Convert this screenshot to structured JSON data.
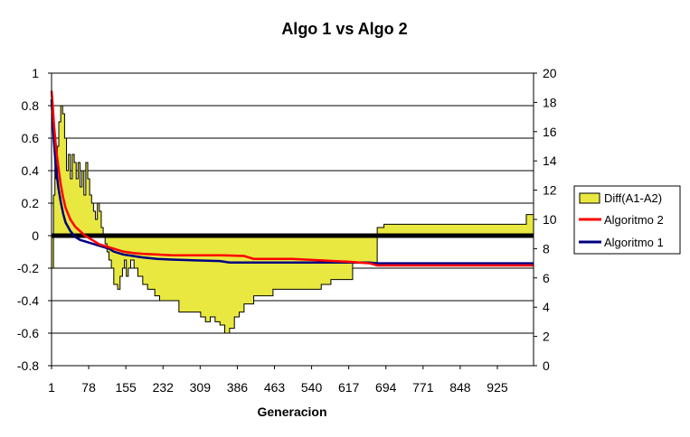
{
  "chart_data": {
    "type": "line",
    "title": "Algo 1 vs Algo 2",
    "xlabel": "Generacion",
    "ylabel": "",
    "y2label": "",
    "ylim": [
      -0.8,
      1
    ],
    "y2lim": [
      0,
      20
    ],
    "xlim": [
      1,
      1000
    ],
    "xticks": [
      1,
      78,
      155,
      232,
      309,
      386,
      463,
      540,
      617,
      694,
      771,
      848,
      925
    ],
    "yticks": [
      "1",
      "0.8",
      "0.6",
      "0.4",
      "0.2",
      "0",
      "-0.2",
      "-0.4",
      "-0.6",
      "-0.8"
    ],
    "y2ticks": [
      "20",
      "18",
      "16",
      "14",
      "12",
      "10",
      "8",
      "6",
      "4",
      "2",
      "0"
    ],
    "grid": true,
    "legend_position": "right",
    "colors": {
      "diff": "#e8e840",
      "diff_edge": "#000000",
      "algoritmo2": "#ff0000",
      "algoritmo1": "#000080",
      "zero_line": "#000000"
    },
    "legend": [
      "Diff(A1-A2)",
      "Algoritmo 2",
      "Algoritmo 1"
    ],
    "series": [
      {
        "name": "Diff(A1-A2)",
        "axis": "left",
        "kind": "area",
        "x": [
          1,
          5,
          8,
          10,
          13,
          16,
          20,
          24,
          28,
          32,
          36,
          40,
          44,
          48,
          52,
          56,
          60,
          64,
          68,
          72,
          76,
          80,
          84,
          88,
          92,
          96,
          100,
          104,
          108,
          112,
          116,
          120,
          125,
          130,
          138,
          143,
          148,
          152,
          156,
          160,
          165,
          172,
          180,
          190,
          200,
          215,
          225,
          245,
          265,
          285,
          300,
          310,
          320,
          330,
          340,
          350,
          360,
          370,
          380,
          390,
          400,
          420,
          440,
          460,
          480,
          500,
          520,
          540,
          560,
          580,
          600,
          625,
          640,
          660,
          675,
          676,
          690,
          720,
          760,
          800,
          850,
          900,
          950,
          980,
          985,
          1000
        ],
        "values": [
          -0.2,
          0.25,
          0.6,
          0.35,
          0.55,
          0.7,
          0.8,
          0.75,
          0.6,
          0.4,
          0.5,
          0.35,
          0.5,
          0.45,
          0.35,
          0.45,
          0.3,
          0.4,
          0.25,
          0.45,
          0.35,
          0.25,
          0.2,
          0.15,
          0.1,
          0.2,
          0.15,
          0.05,
          0.0,
          -0.05,
          -0.1,
          -0.15,
          -0.2,
          -0.3,
          -0.33,
          -0.25,
          -0.2,
          -0.15,
          -0.25,
          -0.2,
          -0.15,
          -0.2,
          -0.25,
          -0.3,
          -0.33,
          -0.37,
          -0.4,
          -0.4,
          -0.47,
          -0.47,
          -0.47,
          -0.5,
          -0.53,
          -0.5,
          -0.53,
          -0.55,
          -0.6,
          -0.57,
          -0.5,
          -0.47,
          -0.42,
          -0.37,
          -0.37,
          -0.33,
          -0.33,
          -0.33,
          -0.33,
          -0.33,
          -0.3,
          -0.27,
          -0.27,
          -0.17,
          -0.17,
          -0.17,
          -0.17,
          0.05,
          0.07,
          0.07,
          0.07,
          0.07,
          0.07,
          0.07,
          0.07,
          0.07,
          0.13,
          0.13
        ]
      },
      {
        "name": "Algoritmo 2",
        "axis": "right",
        "kind": "line",
        "x": [
          1,
          3,
          6,
          10,
          15,
          20,
          25,
          30,
          40,
          50,
          60,
          70,
          80,
          90,
          100,
          110,
          120,
          130,
          140,
          150,
          170,
          190,
          220,
          250,
          300,
          350,
          400,
          420,
          460,
          500,
          560,
          620,
          660,
          676,
          700,
          760,
          800,
          850,
          900,
          950,
          1000
        ],
        "values": [
          18.8,
          18.0,
          16.5,
          15.0,
          13.6,
          12.4,
          11.5,
          10.8,
          10.0,
          9.5,
          9.2,
          8.9,
          8.7,
          8.5,
          8.3,
          8.2,
          8.1,
          8.0,
          7.9,
          7.8,
          7.7,
          7.65,
          7.6,
          7.55,
          7.55,
          7.55,
          7.5,
          7.3,
          7.3,
          7.3,
          7.2,
          7.1,
          7.0,
          6.85,
          6.85,
          6.85,
          6.85,
          6.85,
          6.85,
          6.85,
          6.85
        ]
      },
      {
        "name": "Algoritmo 1",
        "axis": "right",
        "kind": "line",
        "x": [
          1,
          3,
          6,
          10,
          15,
          20,
          25,
          30,
          40,
          50,
          60,
          70,
          80,
          90,
          100,
          110,
          120,
          130,
          140,
          150,
          170,
          190,
          220,
          250,
          300,
          350,
          370,
          400,
          450,
          500,
          560,
          620,
          660,
          676,
          700,
          760,
          800,
          850,
          900,
          950,
          1000
        ],
        "values": [
          18.2,
          17.0,
          15.3,
          13.6,
          12.2,
          11.2,
          10.4,
          9.8,
          9.2,
          8.8,
          8.6,
          8.5,
          8.4,
          8.3,
          8.2,
          8.1,
          8.0,
          7.8,
          7.7,
          7.6,
          7.5,
          7.4,
          7.3,
          7.25,
          7.2,
          7.15,
          7.05,
          7.05,
          7.05,
          7.05,
          7.05,
          7.05,
          7.05,
          7.0,
          7.0,
          7.0,
          7.0,
          7.0,
          7.0,
          7.0,
          7.0
        ]
      }
    ]
  }
}
